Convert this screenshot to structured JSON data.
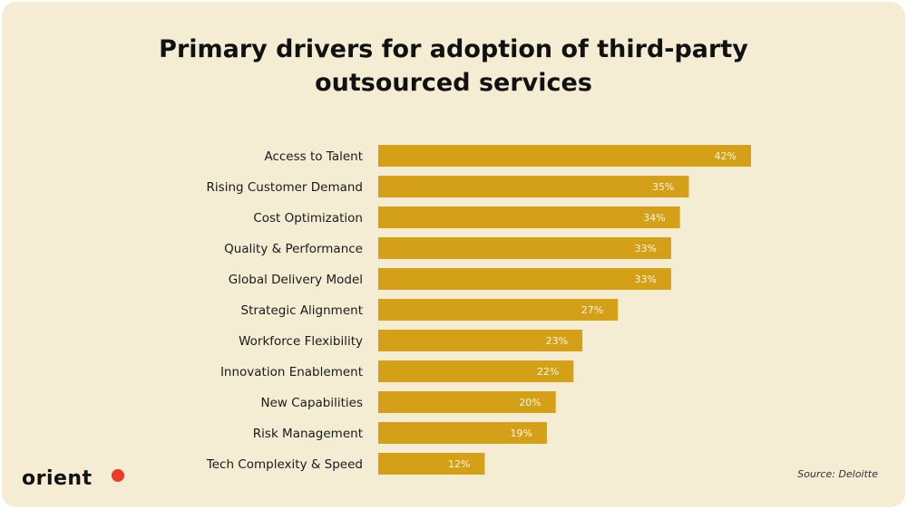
{
  "chart_data": {
    "type": "bar",
    "orientation": "horizontal",
    "title": "Primary drivers for adoption of third-party outsourced services",
    "title_lines": [
      "Primary drivers for adoption of third-party",
      "outsourced services"
    ],
    "categories": [
      "Access to Talent",
      "Rising Customer Demand",
      "Cost Optimization",
      "Quality & Performance",
      "Global Delivery Model",
      "Strategic Alignment",
      "Workforce Flexibility",
      "Innovation Enablement",
      "New Capabilities",
      "Risk Management",
      "Tech Complexity & Speed"
    ],
    "values": [
      42,
      35,
      34,
      33,
      33,
      27,
      23,
      22,
      20,
      19,
      12
    ],
    "value_labels": [
      "42%",
      "35%",
      "34%",
      "33%",
      "33%",
      "27%",
      "23%",
      "22%",
      "20%",
      "19%",
      "12%"
    ],
    "unit": "%",
    "xlim": [
      0,
      42
    ],
    "grid": false,
    "bar_color": "#D4A017",
    "label_color": "#FFF6DE"
  },
  "source": "Source: Deloitte",
  "logo": "orient",
  "colors": {
    "background": "#F5ECD4",
    "logo_dot": "#F03A26"
  }
}
